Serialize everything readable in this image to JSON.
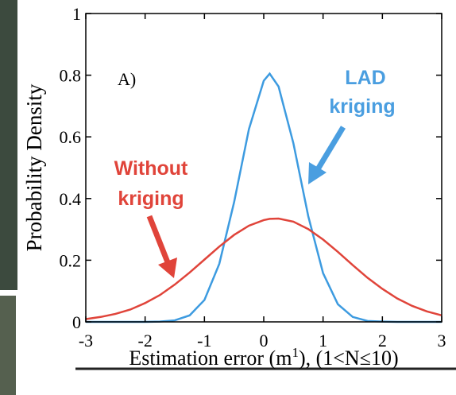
{
  "chart_data": {
    "type": "line",
    "ylabel": "Probability Density",
    "xlabel": [
      "Estimation error (m",
      "1",
      "), (1<N≤10)"
    ],
    "annotations": [
      "A)",
      "LAD",
      "kriging",
      "Without",
      "kriging"
    ],
    "x": [
      -3,
      -2.75,
      -2.5,
      -2.25,
      -2,
      -1.75,
      -1.5,
      -1.25,
      -1,
      -0.75,
      -0.5,
      -0.25,
      0,
      0.1,
      0.25,
      0.5,
      0.75,
      1,
      1.25,
      1.5,
      1.75,
      2,
      2.25,
      2.5,
      2.75,
      3
    ],
    "series": [
      {
        "name": "LAD kriging",
        "color": "#3d9be0",
        "values": [
          0,
          0,
          0,
          0,
          0,
          0.001,
          0.005,
          0.021,
          0.071,
          0.188,
          0.388,
          0.625,
          0.782,
          0.805,
          0.763,
          0.579,
          0.343,
          0.158,
          0.057,
          0.016,
          0.003,
          0.001,
          0,
          0,
          0,
          0
        ]
      },
      {
        "name": "Without kriging",
        "color": "#e0443a",
        "values": [
          0.009,
          0.016,
          0.026,
          0.04,
          0.061,
          0.087,
          0.121,
          0.16,
          0.202,
          0.244,
          0.282,
          0.312,
          0.33,
          0.334,
          0.335,
          0.325,
          0.301,
          0.267,
          0.227,
          0.184,
          0.143,
          0.107,
          0.076,
          0.052,
          0.034,
          0.021
        ]
      }
    ],
    "xlim": [
      -3,
      3
    ],
    "xticks": [
      -3,
      -2,
      -1,
      0,
      1,
      2,
      3
    ],
    "ylim": [
      0,
      1
    ],
    "yticks": [
      0,
      0.2,
      0.4,
      0.6,
      0.8,
      1
    ],
    "grid": false
  }
}
